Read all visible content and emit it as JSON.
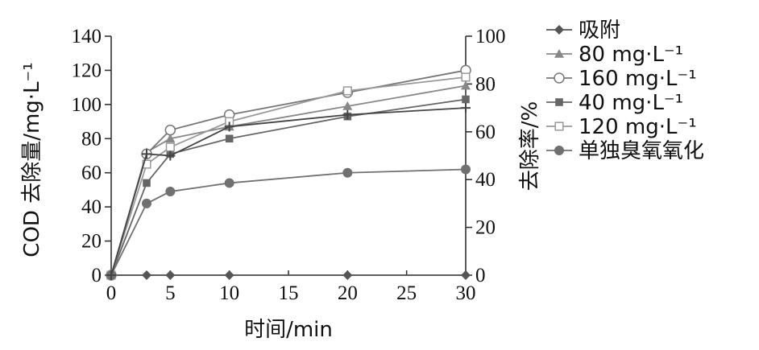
{
  "chart_data": {
    "type": "line",
    "xlabel": "时间/min",
    "ylabel_left": "COD 去除量/mg·L⁻¹",
    "ylabel_right": "去除率/%",
    "xlim": [
      0,
      30
    ],
    "ylim_left": [
      0,
      140
    ],
    "ylim_right": [
      0,
      100
    ],
    "x_ticks": [
      "0",
      "5",
      "10",
      "15",
      "20",
      "25",
      "30"
    ],
    "y_left_ticks": [
      "0",
      "20",
      "40",
      "60",
      "80",
      "100",
      "120",
      "140"
    ],
    "y_right_ticks": [
      "0",
      "20",
      "40",
      "60",
      "80",
      "100"
    ],
    "legend_position": "right",
    "grid": false,
    "series": [
      {
        "name": "吸附",
        "marker": "diamond",
        "color": "#555555",
        "x": [
          0,
          3,
          5,
          10,
          20,
          30
        ],
        "y": [
          0,
          0,
          0,
          0,
          0,
          0
        ]
      },
      {
        "name": "80 mg·L⁻¹",
        "marker": "triangle",
        "color": "#888888",
        "x": [
          0,
          3,
          5,
          10,
          20,
          30
        ],
        "y": [
          0,
          72,
          80,
          87,
          99,
          111
        ]
      },
      {
        "name": "160 mg·L⁻¹",
        "marker": "circle-open",
        "color": "#777777",
        "x": [
          0,
          3,
          5,
          10,
          20,
          30
        ],
        "y": [
          0,
          71,
          85,
          94,
          107,
          120
        ]
      },
      {
        "name": "40 mg·L⁻¹",
        "marker": "square",
        "color": "#666666",
        "x": [
          0,
          3,
          5,
          10,
          20,
          30
        ],
        "y": [
          0,
          54,
          71,
          80,
          93,
          103
        ]
      },
      {
        "name": "120 mg·L⁻¹",
        "marker": "square-open",
        "color": "#999999",
        "x": [
          0,
          3,
          5,
          10,
          20,
          30
        ],
        "y": [
          0,
          65,
          75,
          90,
          108,
          116
        ]
      },
      {
        "name": "单独臭氧氧化",
        "marker": "circle",
        "color": "#707070",
        "x": [
          0,
          3,
          5,
          10,
          20,
          30
        ],
        "y": [
          0,
          42,
          49,
          54,
          60,
          62
        ]
      },
      {
        "name": "",
        "marker": "star",
        "color": "#444444",
        "x": [
          0,
          3,
          5,
          10,
          20,
          30
        ],
        "y": [
          0,
          71,
          70,
          87,
          94,
          98
        ]
      }
    ]
  }
}
